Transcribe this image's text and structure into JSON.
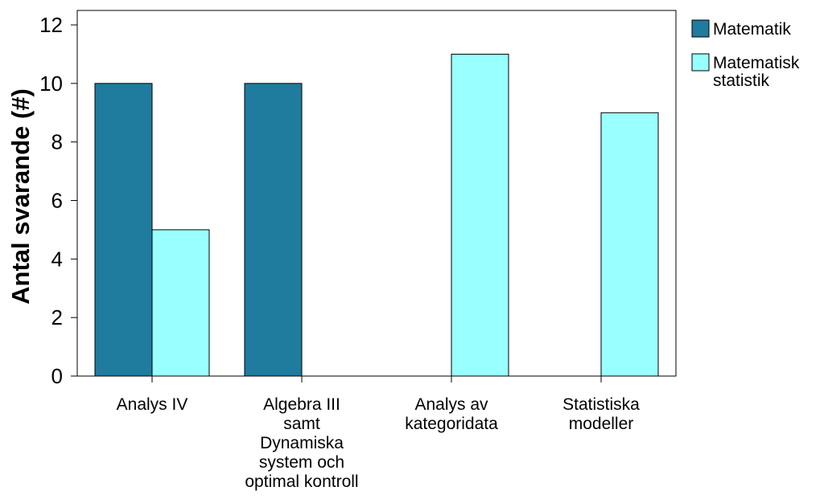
{
  "chart_data": {
    "type": "bar",
    "title": "",
    "xlabel": "",
    "ylabel": "Antal svarande (#)",
    "ylim": [
      0,
      12
    ],
    "yticks": [
      0,
      2,
      4,
      6,
      8,
      10,
      12
    ],
    "grid": false,
    "legend_position": "right",
    "categories": [
      [
        "Analys IV"
      ],
      [
        "Algebra III",
        "samt",
        "Dynamiska",
        "system och",
        "optimal kontroll"
      ],
      [
        "Analys av",
        "kategoridata"
      ],
      [
        "Statistiska",
        "modeller"
      ]
    ],
    "series": [
      {
        "name": "Matematik",
        "legend_lines": [
          "Matematik"
        ],
        "color": "#1f7c9f",
        "values": [
          10,
          10,
          0,
          0
        ]
      },
      {
        "name": "Matematisk statistik",
        "legend_lines": [
          "Matematisk",
          "statistik"
        ],
        "color": "#99ffff",
        "values": [
          5,
          0,
          11,
          9
        ]
      }
    ]
  }
}
